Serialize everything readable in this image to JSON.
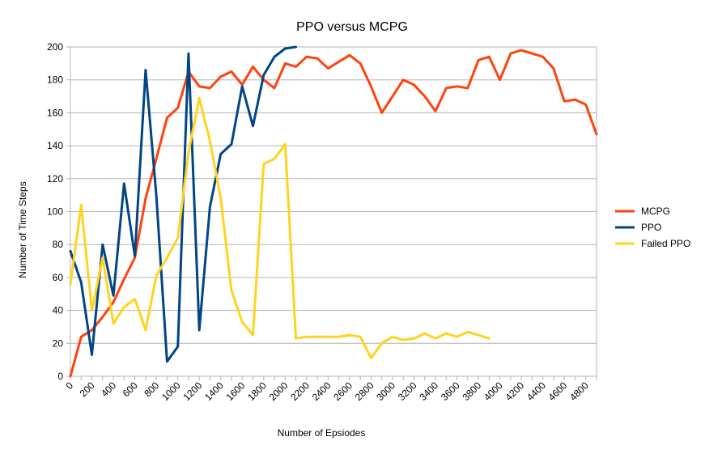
{
  "chart_data": {
    "type": "line",
    "title": "PPO versus MCPG",
    "xlabel": "Number of Epsiodes",
    "ylabel": "Number of Time Steps",
    "xlim": [
      0,
      4900
    ],
    "ylim": [
      0,
      200
    ],
    "x_ticks": [
      "0",
      "200",
      "400",
      "600",
      "800",
      "1000",
      "1200",
      "1400",
      "1600",
      "1800",
      "2000",
      "2200",
      "2400",
      "2600",
      "2800",
      "3000",
      "3200",
      "3400",
      "3600",
      "3800",
      "4000",
      "4200",
      "4400",
      "4600",
      "4800"
    ],
    "y_ticks": [
      "0",
      "20",
      "40",
      "60",
      "80",
      "100",
      "120",
      "140",
      "160",
      "180",
      "200"
    ],
    "grid": "horizontal",
    "legend_position": "right",
    "series": [
      {
        "name": "MCPG",
        "color": "#FF420E",
        "x": [
          0,
          100,
          200,
          300,
          400,
          500,
          600,
          700,
          800,
          900,
          1000,
          1100,
          1200,
          1300,
          1400,
          1500,
          1600,
          1700,
          1800,
          1900,
          2000,
          2100,
          2200,
          2300,
          2400,
          2500,
          2600,
          2700,
          2800,
          2900,
          3000,
          3100,
          3200,
          3300,
          3400,
          3500,
          3600,
          3700,
          3800,
          3900,
          4000,
          4100,
          4200,
          4300,
          4400,
          4500,
          4600,
          4700,
          4800,
          4900
        ],
        "y": [
          0,
          24,
          28,
          36,
          45,
          59,
          72,
          108,
          132,
          157,
          163,
          185,
          176,
          175,
          182,
          185,
          177,
          188,
          180,
          175,
          190,
          188,
          194,
          193,
          187,
          191,
          195,
          190,
          176,
          160,
          170,
          180,
          177,
          170,
          161,
          175,
          176,
          175,
          192,
          194,
          180,
          196,
          198,
          196,
          194,
          187,
          167,
          168,
          165,
          147
        ]
      },
      {
        "name": "PPO",
        "color": "#004586",
        "x": [
          0,
          100,
          200,
          300,
          400,
          500,
          600,
          700,
          800,
          900,
          1000,
          1100,
          1200,
          1300,
          1400,
          1500,
          1600,
          1700,
          1800,
          1900,
          2000,
          2100
        ],
        "y": [
          76,
          57,
          13,
          80,
          49,
          117,
          73,
          186,
          110,
          9,
          18,
          196,
          28,
          103,
          135,
          141,
          176,
          152,
          183,
          194,
          199,
          200
        ]
      },
      {
        "name": "Failed PPO",
        "color": "#FFD320",
        "x": [
          0,
          100,
          200,
          300,
          400,
          500,
          600,
          700,
          800,
          900,
          1000,
          1100,
          1200,
          1300,
          1400,
          1500,
          1600,
          1700,
          1800,
          1900,
          2000,
          2100,
          2200,
          2300,
          2400,
          2500,
          2600,
          2700,
          2800,
          2900,
          3000,
          3100,
          3200,
          3300,
          3400,
          3500,
          3600,
          3700,
          3800,
          3900
        ],
        "y": [
          56,
          104,
          40,
          72,
          32,
          42,
          47,
          28,
          61,
          72,
          84,
          136,
          169,
          143,
          108,
          52,
          33,
          25,
          129,
          132,
          141,
          23,
          24,
          24,
          24,
          24,
          25,
          24,
          11,
          20,
          24,
          22,
          23,
          26,
          23,
          26,
          24,
          27,
          25,
          23
        ]
      }
    ]
  }
}
